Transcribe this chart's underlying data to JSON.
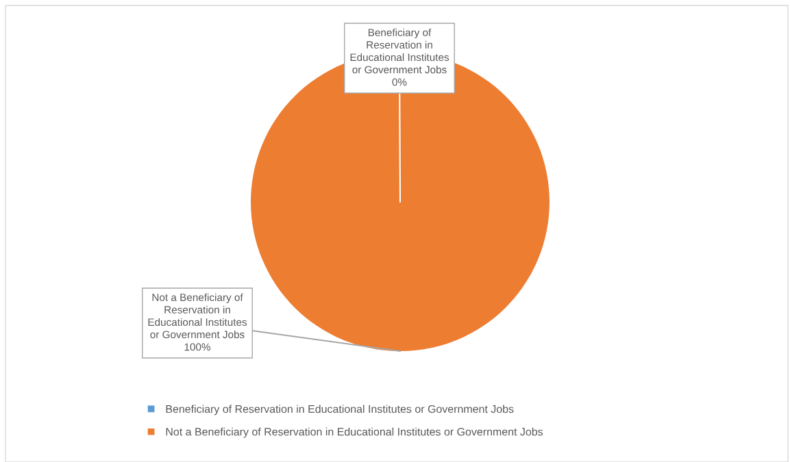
{
  "chart_data": {
    "type": "pie",
    "categories": [
      "Beneficiary of Reservation in Educational Institutes or Government Jobs",
      "Not a Beneficiary of Reservation in Educational Institutes or Government Jobs"
    ],
    "values": [
      0,
      100
    ],
    "colors": [
      "#5b9bd5",
      "#ed7d31"
    ],
    "annotations": [
      "Beneficiary of\nReservation in\nEducational Institutes\nor Government Jobs\n0%",
      "Not a Beneficiary of\nReservation in\nEducational Institutes\nor Government Jobs\n100%"
    ],
    "legend": "bottom"
  }
}
